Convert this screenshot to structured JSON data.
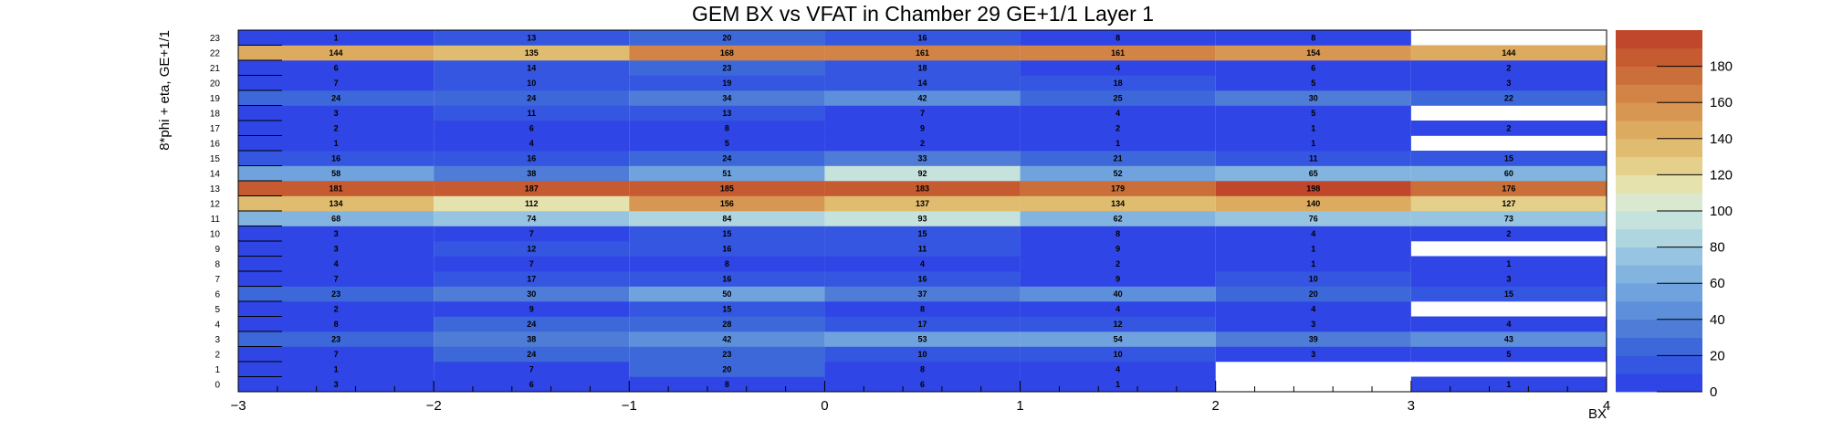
{
  "chart_data": {
    "type": "heatmap",
    "title": "GEM BX vs VFAT in Chamber 29 GE+1/1 Layer 1",
    "xlabel": "BX",
    "ylabel": "8*phi + eta, GE+1/1",
    "x_bins": [
      -3,
      -2,
      -1,
      0,
      1,
      2,
      3,
      4
    ],
    "x_ticks": [
      "−3",
      "−2",
      "−1",
      "0",
      "1",
      "2",
      "3",
      "4"
    ],
    "xlim": [
      -3,
      4
    ],
    "y_bins": [
      0,
      1,
      2,
      3,
      4,
      5,
      6,
      7,
      8,
      9,
      10,
      11,
      12,
      13,
      14,
      15,
      16,
      17,
      18,
      19,
      20,
      21,
      22,
      23
    ],
    "columns_bx": [
      -3,
      -2,
      -1,
      0,
      1,
      2,
      3
    ],
    "values": {
      "23": [
        1,
        13,
        20,
        16,
        8,
        8,
        null
      ],
      "22": [
        144,
        135,
        168,
        161,
        161,
        154,
        144
      ],
      "21": [
        6,
        14,
        23,
        18,
        4,
        6,
        2
      ],
      "20": [
        7,
        10,
        19,
        14,
        18,
        5,
        3
      ],
      "19": [
        24,
        24,
        34,
        42,
        25,
        30,
        22
      ],
      "18": [
        3,
        11,
        13,
        7,
        4,
        5,
        null
      ],
      "17": [
        2,
        6,
        8,
        9,
        2,
        1,
        2
      ],
      "16": [
        1,
        4,
        5,
        2,
        1,
        1,
        null
      ],
      "15": [
        16,
        16,
        24,
        33,
        21,
        11,
        15
      ],
      "14": [
        58,
        38,
        51,
        92,
        52,
        65,
        60
      ],
      "13": [
        181,
        187,
        185,
        183,
        179,
        198,
        176
      ],
      "12": [
        134,
        112,
        156,
        137,
        134,
        140,
        127
      ],
      "11": [
        68,
        74,
        84,
        93,
        62,
        76,
        73
      ],
      "10": [
        3,
        7,
        15,
        15,
        8,
        4,
        2
      ],
      "9": [
        3,
        12,
        16,
        11,
        9,
        1,
        null
      ],
      "8": [
        4,
        7,
        8,
        4,
        2,
        1,
        1
      ],
      "7": [
        7,
        17,
        16,
        16,
        9,
        10,
        3
      ],
      "6": [
        23,
        30,
        50,
        37,
        40,
        20,
        15
      ],
      "5": [
        2,
        9,
        15,
        8,
        4,
        4,
        null
      ],
      "4": [
        8,
        24,
        28,
        17,
        12,
        3,
        4
      ],
      "3": [
        23,
        38,
        42,
        53,
        54,
        39,
        43
      ],
      "2": [
        7,
        24,
        23,
        10,
        10,
        3,
        5
      ],
      "1": [
        1,
        7,
        20,
        8,
        4,
        null,
        null
      ],
      "0": [
        3,
        6,
        8,
        6,
        1,
        null,
        1
      ]
    },
    "zlim": [
      0,
      200
    ],
    "z_ticks": [
      0,
      20,
      40,
      60,
      80,
      100,
      120,
      140,
      160,
      180
    ],
    "colorbar_colors": [
      "#2f45e6",
      "#3456e0",
      "#3d68da",
      "#4e7cd6",
      "#5e8fdb",
      "#70a2de",
      "#83b4e0",
      "#97c4e0",
      "#aed5e0",
      "#c5e2dc",
      "#dae8d0",
      "#e6e2ae",
      "#e4cf8b",
      "#dfbc6f",
      "#dcab60",
      "#d79652",
      "#d28446",
      "#cb6f3a",
      "#c65a31",
      "#c0462c"
    ],
    "grid": false,
    "legend": "colorbar-right"
  }
}
